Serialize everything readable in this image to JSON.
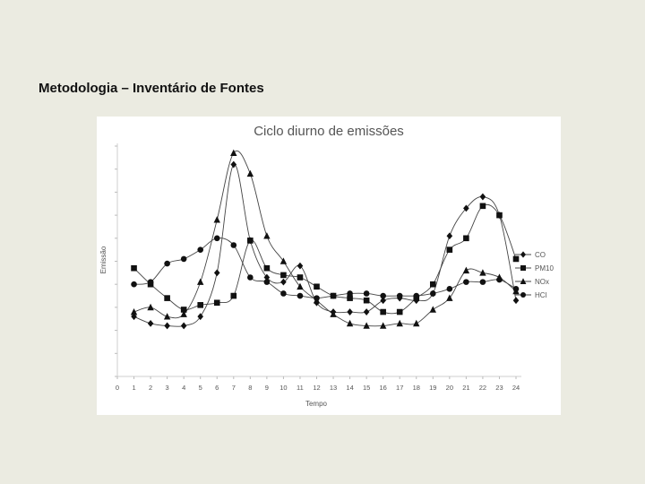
{
  "slide": {
    "title": "Metodologia – Inventário de Fontes"
  },
  "chart_data": {
    "type": "line",
    "title": "Ciclo diurno de emissões",
    "xlabel": "Tempo",
    "ylabel": "Emissão",
    "xlim": [
      0,
      24
    ],
    "ylim": [
      0,
      100
    ],
    "x_ticks": [
      0,
      1,
      2,
      3,
      4,
      5,
      6,
      7,
      8,
      9,
      10,
      11,
      12,
      13,
      14,
      15,
      16,
      17,
      18,
      19,
      20,
      21,
      22,
      23,
      24
    ],
    "grid": false,
    "legend_position": "right",
    "series": [
      {
        "name": "CO",
        "marker": "diamond",
        "x": [
          1,
          2,
          3,
          4,
          5,
          6,
          7,
          8,
          9,
          10,
          11,
          12,
          13,
          14,
          15,
          16,
          17,
          18,
          19,
          20,
          21,
          22,
          23,
          24
        ],
        "y": [
          26,
          23,
          22,
          22,
          26,
          45,
          92,
          59,
          43,
          41,
          48,
          32,
          28,
          28,
          28,
          33,
          34,
          33,
          36,
          61,
          73,
          78,
          70,
          33
        ]
      },
      {
        "name": "PM10",
        "marker": "square",
        "x": [
          1,
          2,
          3,
          4,
          5,
          6,
          7,
          8,
          9,
          10,
          11,
          12,
          13,
          14,
          15,
          16,
          17,
          18,
          19,
          20,
          21,
          22,
          23,
          24
        ],
        "y": [
          47,
          40,
          34,
          29,
          31,
          32,
          35,
          59,
          47,
          44,
          43,
          39,
          35,
          34,
          33,
          28,
          28,
          34,
          40,
          55,
          60,
          74,
          70,
          51
        ]
      },
      {
        "name": "NOx",
        "marker": "triangle",
        "x": [
          1,
          2,
          3,
          4,
          5,
          6,
          7,
          8,
          9,
          10,
          11,
          12,
          13,
          14,
          15,
          16,
          17,
          18,
          19,
          20,
          21,
          22,
          23,
          24
        ],
        "y": [
          28,
          30,
          26,
          27,
          41,
          68,
          97,
          88,
          61,
          50,
          39,
          33,
          27,
          23,
          22,
          22,
          23,
          23,
          29,
          34,
          46,
          45,
          43,
          37
        ]
      },
      {
        "name": "HCl",
        "marker": "circle",
        "x": [
          1,
          2,
          3,
          4,
          5,
          6,
          7,
          8,
          9,
          10,
          11,
          12,
          13,
          14,
          15,
          16,
          17,
          18,
          19,
          20,
          21,
          22,
          23,
          24
        ],
        "y": [
          40,
          41,
          49,
          51,
          55,
          60,
          57,
          43,
          41,
          36,
          35,
          34,
          35,
          36,
          36,
          35,
          35,
          35,
          36,
          38,
          41,
          41,
          42,
          38
        ]
      }
    ]
  }
}
